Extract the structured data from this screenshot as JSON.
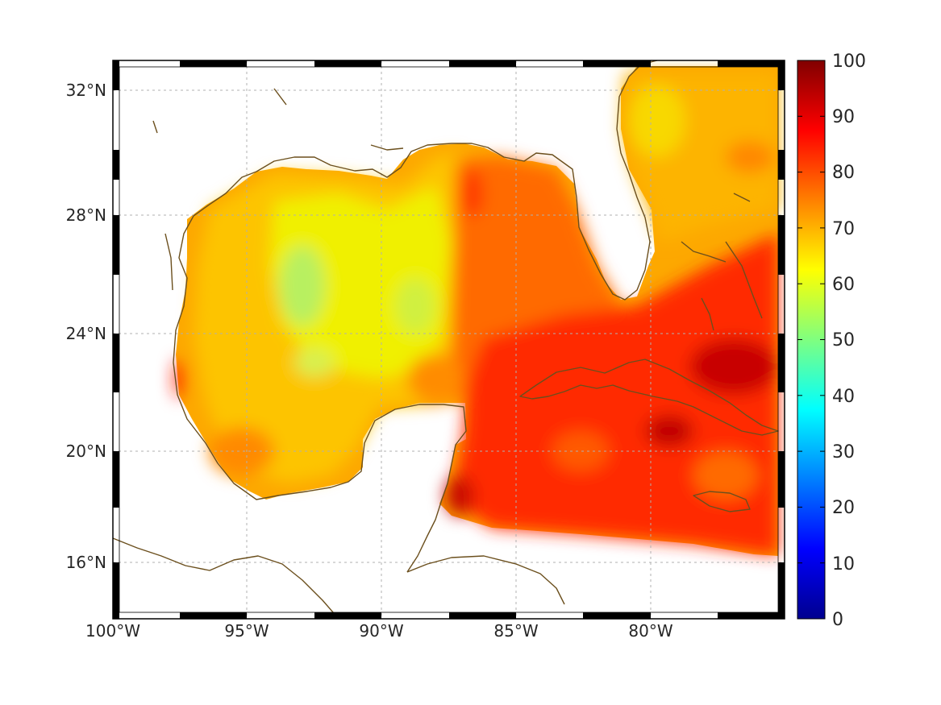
{
  "map": {
    "lat_range": [
      14.2,
      32.9
    ],
    "lon_range": [
      -100,
      -75.1
    ],
    "lat_ticks": [
      {
        "value": 32,
        "label": "32°N"
      },
      {
        "value": 28,
        "label": "28°N"
      },
      {
        "value": 24,
        "label": "24°N"
      },
      {
        "value": 20,
        "label": "20°N"
      },
      {
        "value": 16,
        "label": "16°N"
      }
    ],
    "lon_ticks": [
      {
        "value": -100,
        "label": "100°W"
      },
      {
        "value": -95,
        "label": "95°W"
      },
      {
        "value": -90,
        "label": "90°W"
      },
      {
        "value": -85,
        "label": "85°W"
      },
      {
        "value": -80,
        "label": "80°W"
      }
    ],
    "grid": true,
    "coastline_color": "#6b4f1d",
    "frame_style": "alternating black/white border"
  },
  "colorbar": {
    "colormap": "jet",
    "min": 0,
    "max": 100,
    "ticks": [
      "100",
      "90",
      "80",
      "70",
      "60",
      "50",
      "40",
      "30",
      "20",
      "10",
      "0"
    ]
  },
  "field": {
    "description_values": {
      "western_gulf": 68,
      "central_gulf_min": 58,
      "eastern_gulf": 80,
      "caribbean": 86,
      "atlantic_north": 72,
      "bahamas_max": 95
    }
  }
}
